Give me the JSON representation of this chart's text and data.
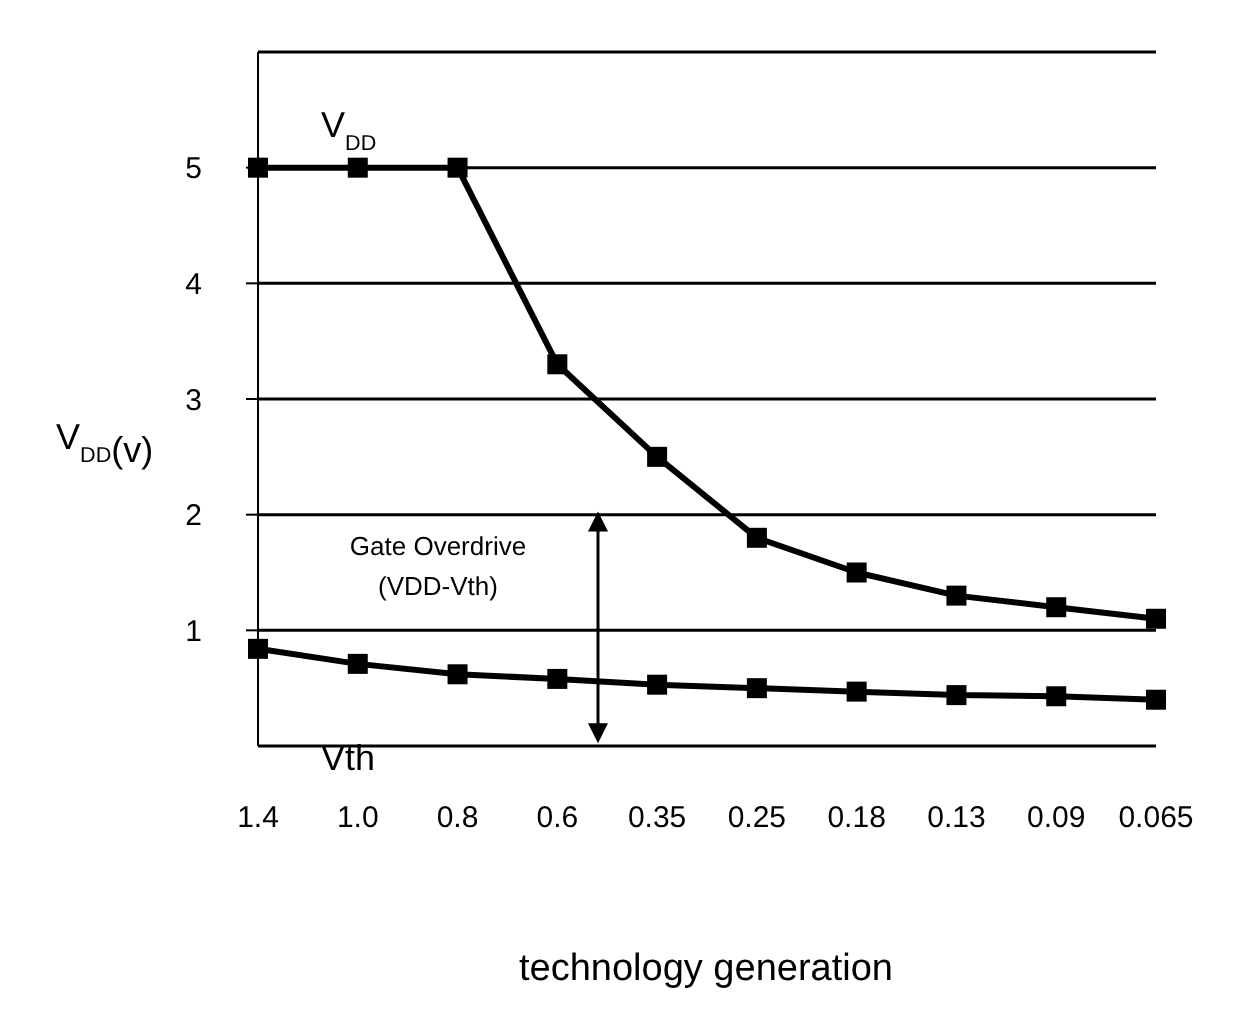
{
  "chart_data": {
    "type": "line",
    "xlabel": "technology generation",
    "ylabel": "V$_{DD}$(v)",
    "categories": [
      "1.4",
      "1.0",
      "0.8",
      "0.6",
      "0.35",
      "0.25",
      "0.18",
      "0.13",
      "0.09",
      "0.065"
    ],
    "series": [
      {
        "name": "V$_{DD}$",
        "color": "#000000",
        "values": [
          5,
          5,
          5,
          3.3,
          2.5,
          1.8,
          1.5,
          1.3,
          1.2,
          1.1
        ]
      },
      {
        "name": "Vth",
        "color": "#000000",
        "values": [
          0.84,
          0.71,
          0.62,
          0.58,
          0.53,
          0.5,
          0.47,
          0.44,
          0.43,
          0.4
        ]
      }
    ],
    "ylim": [
      0,
      6
    ],
    "yticks": [
      1,
      2,
      3,
      4,
      5
    ],
    "grid": "y",
    "marker": "square",
    "line_style": "solid",
    "annotations": [
      "Gate Overdrive (VDD-Vth)"
    ]
  }
}
